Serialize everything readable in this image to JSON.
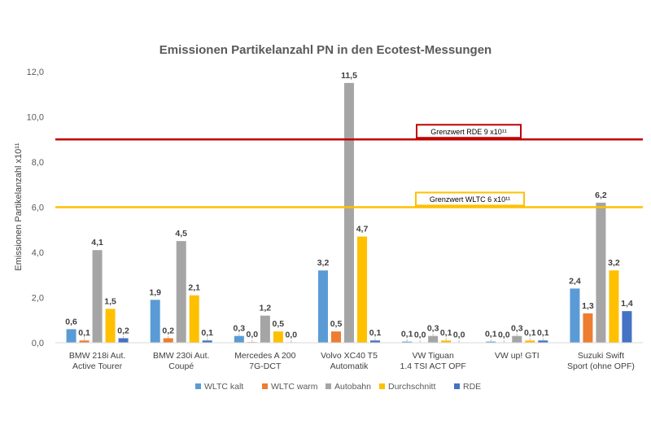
{
  "chart_data": {
    "type": "bar",
    "title": "Emissionen Partikelanzahl PN in den Ecotest-Messungen",
    "ylabel": "Emissionen Partikelanzahl x10¹¹",
    "xlabel": "",
    "ylim": [
      0,
      12
    ],
    "yticks": [
      "0,0",
      "2,0",
      "4,0",
      "6,0",
      "8,0",
      "10,0",
      "12,0"
    ],
    "grid": false,
    "legend_position": "bottom",
    "categories": [
      [
        "BMW 218i Aut.",
        "Active Tourer"
      ],
      [
        "BMW 230i Aut.",
        "Coupé"
      ],
      [
        "Mercedes A 200",
        "7G-DCT"
      ],
      [
        "Volvo XC40 T5",
        "Automatik"
      ],
      [
        "VW Tiguan",
        "1.4 TSI ACT OPF"
      ],
      [
        "VW up! GTI",
        ""
      ],
      [
        "Suzuki Swift",
        "Sport (ohne OPF)"
      ]
    ],
    "series": [
      {
        "name": "WLTC kalt",
        "color": "#5B9BD5",
        "values": [
          0.6,
          1.9,
          0.3,
          3.2,
          0.05,
          0.05,
          2.4
        ],
        "labels": [
          "0,6",
          "1,9",
          "0,3",
          "3,2",
          "0,1",
          "0,1",
          "2,4"
        ]
      },
      {
        "name": "WLTC warm",
        "color": "#ED7D31",
        "values": [
          0.1,
          0.2,
          0.03,
          0.5,
          0.01,
          0.01,
          1.3
        ],
        "labels": [
          "0,1",
          "0,2",
          "0,0",
          "0,5",
          "0,0",
          "0,0",
          "1,3"
        ]
      },
      {
        "name": "Autobahn",
        "color": "#A5A5A5",
        "values": [
          4.1,
          4.5,
          1.2,
          11.5,
          0.3,
          0.3,
          6.2
        ],
        "labels": [
          "4,1",
          "4,5",
          "1,2",
          "11,5",
          "0,3",
          "0,3",
          "6,2"
        ]
      },
      {
        "name": "Durchschnitt",
        "color": "#FFC000",
        "values": [
          1.5,
          2.1,
          0.5,
          4.7,
          0.1,
          0.1,
          3.2
        ],
        "labels": [
          "1,5",
          "2,1",
          "0,5",
          "4,7",
          "0,1",
          "0,1",
          "3,2"
        ]
      },
      {
        "name": "RDE",
        "color": "#4472C4",
        "values": [
          0.2,
          0.1,
          0.02,
          0.1,
          0.01,
          0.1,
          1.4
        ],
        "labels": [
          "0,2",
          "0,1",
          "0,0",
          "0,1",
          "0,0",
          "0,1",
          "1,4"
        ]
      }
    ],
    "reference_lines": [
      {
        "label": "Grenzwert RDE 9 x10¹¹",
        "value": 9,
        "color": "#C00000"
      },
      {
        "label": "Grenzwert WLTC 6 x10¹¹",
        "value": 6,
        "color": "#FFC000"
      }
    ]
  }
}
